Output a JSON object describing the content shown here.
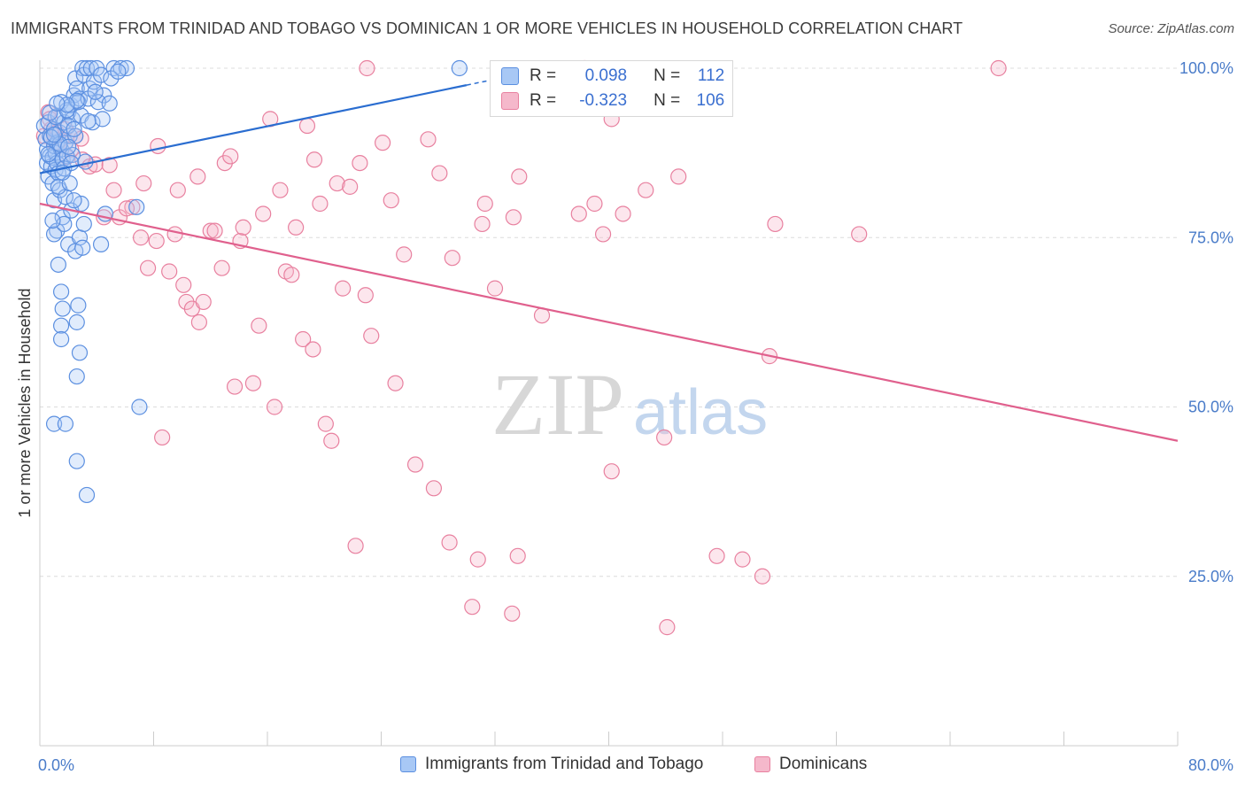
{
  "title": "IMMIGRANTS FROM TRINIDAD AND TOBAGO VS DOMINICAN 1 OR MORE VEHICLES IN HOUSEHOLD CORRELATION CHART",
  "source": "Source: ZipAtlas.com",
  "watermark": {
    "zip": "ZIP",
    "atlas": "atlas"
  },
  "stats": {
    "blue": {
      "r_label": "R =",
      "r_value": "0.098",
      "n_label": "N =",
      "n_value": "112"
    },
    "pink": {
      "r_label": "R =",
      "r_value": "-0.323",
      "n_label": "N =",
      "n_value": "106"
    }
  },
  "legend": {
    "blue": "Immigrants from Trinidad and Tobago",
    "pink": "Dominicans"
  },
  "colors": {
    "blue": "#5b8fe0",
    "blue_fill": "#a8c8f5",
    "blue_line": "#2a6dd0",
    "pink": "#e8809f",
    "pink_fill": "#f5b8cb",
    "pink_line": "#e0608d"
  },
  "chart_data": {
    "type": "scatter",
    "title": "IMMIGRANTS FROM TRINIDAD AND TOBAGO VS DOMINICAN 1 OR MORE VEHICLES IN HOUSEHOLD CORRELATION CHART",
    "xlabel": "",
    "ylabel": "1 or more Vehicles in Household",
    "xlim": [
      0,
      80
    ],
    "ylim": [
      0,
      102
    ],
    "x_tick_labels": [
      "0.0%",
      "80.0%"
    ],
    "y_ticks": [
      25,
      50,
      75,
      100
    ],
    "y_tick_labels": [
      "25.0%",
      "50.0%",
      "75.0%",
      "100.0%"
    ],
    "grid": true,
    "legend_position": "bottom",
    "series": [
      {
        "name": "Immigrants from Trinidad and Tobago",
        "trend": [
          [
            0,
            84.5
          ],
          [
            30,
            97.5
          ]
        ],
        "points": [
          [
            0.3,
            91.5
          ],
          [
            0.4,
            89.5
          ],
          [
            0.5,
            88
          ],
          [
            0.5,
            86
          ],
          [
            0.6,
            84
          ],
          [
            0.6,
            92
          ],
          [
            0.7,
            90
          ],
          [
            0.7,
            87
          ],
          [
            0.8,
            85.5
          ],
          [
            0.9,
            86.8
          ],
          [
            0.9,
            83
          ],
          [
            1.0,
            88.5
          ],
          [
            1.0,
            91
          ],
          [
            1.1,
            85
          ],
          [
            1.1,
            87.5
          ],
          [
            1.2,
            89
          ],
          [
            1.2,
            86
          ],
          [
            1.3,
            93
          ],
          [
            1.3,
            84.5
          ],
          [
            1.4,
            90.5
          ],
          [
            1.5,
            88
          ],
          [
            1.5,
            95
          ],
          [
            1.6,
            86.5
          ],
          [
            1.7,
            92
          ],
          [
            1.8,
            89
          ],
          [
            1.9,
            87
          ],
          [
            2.0,
            93.5
          ],
          [
            2.1,
            90
          ],
          [
            2.2,
            94.5
          ],
          [
            2.3,
            92.5
          ],
          [
            2.4,
            96
          ],
          [
            2.5,
            98.5
          ],
          [
            2.6,
            97
          ],
          [
            2.8,
            95.5
          ],
          [
            2.9,
            93
          ],
          [
            3.0,
            100
          ],
          [
            3.1,
            99
          ],
          [
            3.3,
            100
          ],
          [
            3.5,
            97
          ],
          [
            3.6,
            100
          ],
          [
            3.8,
            98
          ],
          [
            4.0,
            100
          ],
          [
            4.3,
            99
          ],
          [
            5.2,
            100
          ],
          [
            5.7,
            100
          ],
          [
            6.1,
            100
          ],
          [
            2.7,
            95
          ],
          [
            3.4,
            95.5
          ],
          [
            4.5,
            96
          ],
          [
            5.0,
            98.5
          ],
          [
            1.0,
            80.5
          ],
          [
            1.2,
            76
          ],
          [
            1.4,
            82
          ],
          [
            1.6,
            78
          ],
          [
            1.8,
            81
          ],
          [
            2.0,
            74
          ],
          [
            2.2,
            79
          ],
          [
            2.5,
            73
          ],
          [
            2.8,
            75
          ],
          [
            3.1,
            77
          ],
          [
            1.0,
            75.5
          ],
          [
            1.3,
            71
          ],
          [
            1.5,
            67
          ],
          [
            1.6,
            64.5
          ],
          [
            1.5,
            62
          ],
          [
            2.7,
            65
          ],
          [
            2.6,
            62.5
          ],
          [
            2.8,
            58
          ],
          [
            1.5,
            60
          ],
          [
            2.6,
            54.5
          ],
          [
            1.0,
            47.5
          ],
          [
            1.8,
            47.5
          ],
          [
            2.6,
            42
          ],
          [
            3.3,
            37
          ],
          [
            7.0,
            50
          ],
          [
            6.8,
            79.5
          ],
          [
            4.6,
            78.5
          ],
          [
            4.3,
            74
          ],
          [
            3.0,
            73.5
          ],
          [
            2.9,
            80
          ],
          [
            1.4,
            88.8
          ],
          [
            2.0,
            91.5
          ],
          [
            2.3,
            87.2
          ],
          [
            1.1,
            92.8
          ],
          [
            0.8,
            89.8
          ],
          [
            1.7,
            85.2
          ],
          [
            2.2,
            86
          ],
          [
            3.7,
            92
          ],
          [
            4.1,
            95
          ],
          [
            2.5,
            90
          ],
          [
            0.6,
            87.3
          ],
          [
            1.0,
            90.2
          ],
          [
            1.9,
            93.8
          ],
          [
            2.4,
            91
          ],
          [
            3.9,
            96.5
          ],
          [
            1.3,
            82.5
          ],
          [
            1.7,
            77
          ],
          [
            2.1,
            83
          ],
          [
            2.4,
            80.5
          ],
          [
            0.9,
            77.5
          ],
          [
            4.4,
            92.5
          ],
          [
            3.2,
            86.2
          ],
          [
            1.6,
            84.6
          ],
          [
            2.0,
            88.4
          ],
          [
            3.4,
            92.2
          ],
          [
            4.9,
            94.8
          ],
          [
            5.5,
            99.5
          ],
          [
            29.5,
            100
          ],
          [
            2.6,
            95.2
          ],
          [
            1.9,
            94.6
          ],
          [
            0.7,
            93.4
          ],
          [
            1.2,
            94.8
          ]
        ]
      },
      {
        "name": "Dominicans",
        "trend": [
          [
            0,
            80.0
          ],
          [
            80,
            45.0
          ]
        ],
        "points": [
          [
            0.6,
            93.5
          ],
          [
            0.8,
            91
          ],
          [
            1.0,
            89
          ],
          [
            1.2,
            90.5
          ],
          [
            1.5,
            89.5
          ],
          [
            1.8,
            91
          ],
          [
            2.2,
            88
          ],
          [
            2.5,
            90
          ],
          [
            3.0,
            86.5
          ],
          [
            3.5,
            85.5
          ],
          [
            3.9,
            85.8
          ],
          [
            4.5,
            78
          ],
          [
            5.2,
            82
          ],
          [
            5.6,
            78
          ],
          [
            6.5,
            79.5
          ],
          [
            7.1,
            75
          ],
          [
            7.3,
            83
          ],
          [
            7.6,
            70.5
          ],
          [
            8.2,
            74.5
          ],
          [
            8.3,
            88.5
          ],
          [
            8.6,
            45.5
          ],
          [
            9.1,
            70
          ],
          [
            9.5,
            75.5
          ],
          [
            9.7,
            82
          ],
          [
            10.1,
            68
          ],
          [
            10.3,
            65.5
          ],
          [
            10.7,
            64.5
          ],
          [
            11.1,
            84
          ],
          [
            11.2,
            62.5
          ],
          [
            11.5,
            65.5
          ],
          [
            12.0,
            76
          ],
          [
            12.3,
            76
          ],
          [
            12.8,
            70.5
          ],
          [
            13.0,
            86
          ],
          [
            13.4,
            87
          ],
          [
            13.7,
            53
          ],
          [
            14.1,
            74.5
          ],
          [
            14.3,
            76.5
          ],
          [
            15.0,
            53.5
          ],
          [
            15.4,
            62
          ],
          [
            15.7,
            78.5
          ],
          [
            16.2,
            92.5
          ],
          [
            16.5,
            50
          ],
          [
            16.9,
            82
          ],
          [
            17.3,
            70
          ],
          [
            17.7,
            69.5
          ],
          [
            18.0,
            76.5
          ],
          [
            18.5,
            60
          ],
          [
            18.8,
            91.5
          ],
          [
            19.2,
            58.5
          ],
          [
            19.3,
            86.5
          ],
          [
            19.7,
            80
          ],
          [
            20.1,
            47.5
          ],
          [
            20.5,
            45
          ],
          [
            20.9,
            83
          ],
          [
            21.3,
            67.5
          ],
          [
            21.8,
            82.5
          ],
          [
            22.2,
            29.5
          ],
          [
            22.5,
            86
          ],
          [
            22.9,
            66.5
          ],
          [
            23.3,
            60.5
          ],
          [
            24.1,
            89
          ],
          [
            24.7,
            80.5
          ],
          [
            25.0,
            53.5
          ],
          [
            25.6,
            72.5
          ],
          [
            26.4,
            41.5
          ],
          [
            27.3,
            89.5
          ],
          [
            27.7,
            38
          ],
          [
            28.1,
            84.5
          ],
          [
            28.8,
            30
          ],
          [
            29.0,
            72
          ],
          [
            30.4,
            20.5
          ],
          [
            30.8,
            27.5
          ],
          [
            31.1,
            77
          ],
          [
            31.3,
            80
          ],
          [
            32.0,
            67.5
          ],
          [
            33.2,
            19.5
          ],
          [
            33.3,
            78
          ],
          [
            33.6,
            28
          ],
          [
            33.7,
            84
          ],
          [
            35.3,
            63.5
          ],
          [
            37.9,
            78.5
          ],
          [
            39.0,
            80
          ],
          [
            39.6,
            75.5
          ],
          [
            40.2,
            92.5
          ],
          [
            40.2,
            40.5
          ],
          [
            41.0,
            78.5
          ],
          [
            42.6,
            82
          ],
          [
            43.9,
            45.5
          ],
          [
            44.1,
            17.5
          ],
          [
            44.9,
            84
          ],
          [
            47.6,
            28
          ],
          [
            49.4,
            27.5
          ],
          [
            50.8,
            25
          ],
          [
            51.3,
            57.5
          ],
          [
            51.7,
            77
          ],
          [
            57.6,
            75.5
          ],
          [
            67.4,
            100
          ],
          [
            23.0,
            100
          ],
          [
            38.3,
            100
          ],
          [
            0.3,
            90
          ],
          [
            0.7,
            92.5
          ],
          [
            1.9,
            86.9
          ],
          [
            2.9,
            89.6
          ],
          [
            4.9,
            85.7
          ],
          [
            6.1,
            79.3
          ]
        ]
      }
    ]
  }
}
